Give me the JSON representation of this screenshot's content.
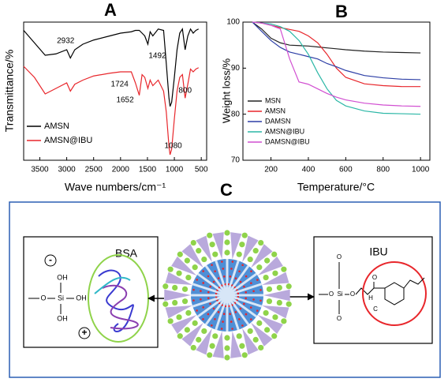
{
  "chart_data": [
    {
      "type": "line",
      "title": "A",
      "x_label": "Wave numbers/cm⁻¹",
      "y_label": "Transmittance/%",
      "x": [
        3800,
        3600,
        3400,
        3200,
        3000,
        2932,
        2850,
        2700,
        2500,
        2200,
        2000,
        1800,
        1724,
        1652,
        1600,
        1550,
        1492,
        1450,
        1400,
        1300,
        1200,
        1150,
        1100,
        1080,
        1050,
        1000,
        950,
        900,
        850,
        800,
        750,
        700,
        650,
        600,
        550
      ],
      "series": [
        {
          "name": "AMSN",
          "color": "#000000",
          "values": [
            94,
            85,
            76,
            77,
            80,
            74,
            80,
            84,
            87,
            90,
            92,
            93,
            94,
            94,
            92,
            90,
            84,
            93,
            90,
            95,
            94,
            70,
            45,
            39,
            42,
            60,
            80,
            92,
            95,
            80,
            90,
            95,
            92,
            94,
            95
          ]
        },
        {
          "name": "AMSN@IBU",
          "color": "#e8262b",
          "values": [
            68,
            60,
            48,
            52,
            56,
            50,
            55,
            58,
            61,
            63,
            64,
            64,
            56,
            47,
            62,
            60,
            52,
            58,
            54,
            58,
            50,
            35,
            10,
            4,
            8,
            30,
            50,
            60,
            62,
            45,
            55,
            66,
            64,
            66,
            67
          ]
        }
      ],
      "annotations": [
        2932,
        1492,
        1724,
        1652,
        800,
        1080
      ],
      "xlim": [
        3800,
        400
      ],
      "xticks": [
        3500,
        3000,
        2500,
        2000,
        1500,
        1000,
        500
      ],
      "ylim": [
        0,
        100
      ],
      "legend": "lower left"
    },
    {
      "type": "line",
      "title": "B",
      "x_label": "Temperature/°C",
      "y_label": "Weight loss/%",
      "x": [
        100,
        150,
        200,
        250,
        300,
        350,
        400,
        450,
        500,
        550,
        600,
        700,
        800,
        900,
        1000
      ],
      "series": [
        {
          "name": "MSN",
          "color": "#222222",
          "values": [
            100,
            98.5,
            96.5,
            95.5,
            95,
            94.9,
            94.8,
            94.6,
            94.4,
            94.2,
            94,
            93.7,
            93.5,
            93.4,
            93.3
          ]
        },
        {
          "name": "AMSN",
          "color": "#e8262b",
          "values": [
            100,
            99.8,
            99.3,
            98.8,
            98.4,
            98,
            97,
            95.5,
            93,
            90,
            88,
            86.6,
            86.2,
            86,
            86
          ]
        },
        {
          "name": "DAMSN",
          "color": "#2d3fa6",
          "values": [
            100,
            98,
            96,
            94.5,
            93.5,
            93,
            92.5,
            92,
            91,
            90.3,
            89.5,
            88.4,
            87.9,
            87.6,
            87.5
          ]
        },
        {
          "name": "AMSN@IBU",
          "color": "#2bb7a6",
          "values": [
            100,
            99.8,
            99.6,
            99,
            98,
            96,
            93,
            89,
            85.5,
            83,
            81.8,
            80.7,
            80.2,
            80.1,
            80
          ]
        },
        {
          "name": "DAMSN@IBU",
          "color": "#d14fd1",
          "values": [
            100,
            99.8,
            99.3,
            98.5,
            92,
            87,
            86.5,
            85.5,
            84.5,
            83.7,
            83.1,
            82.4,
            82,
            81.8,
            81.7
          ]
        }
      ],
      "xlim": [
        50,
        1050
      ],
      "xticks": [
        200,
        400,
        600,
        800,
        1000
      ],
      "ylim": [
        70,
        100
      ],
      "yticks": [
        70,
        80,
        90,
        100
      ],
      "legend": "lower left"
    }
  ],
  "diagram": {
    "title": "C",
    "left_label": "BSA",
    "right_label": "IBU",
    "left_atoms": [
      "O",
      "Si",
      "OH",
      "OH",
      "OH"
    ],
    "charges": [
      "-",
      "+"
    ],
    "right_atoms": [
      "O",
      "Si",
      "O",
      "O",
      "O",
      "O",
      "H",
      "C"
    ]
  }
}
